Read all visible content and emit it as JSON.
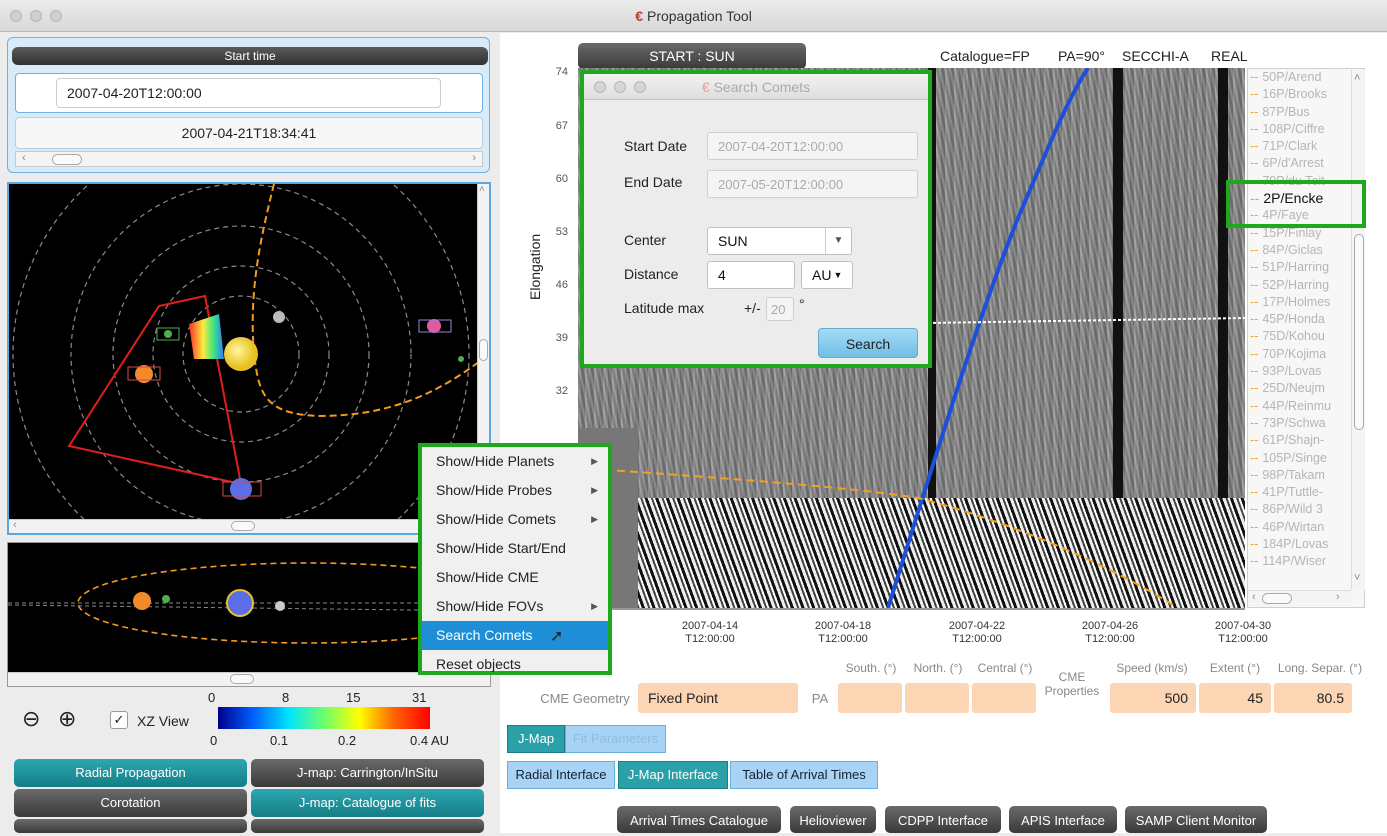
{
  "window": {
    "title": "Propagation Tool"
  },
  "left": {
    "start_time_label": "Start time",
    "start_time_value": "2007-04-20T12:00:00",
    "end_time_value": "2007-04-21T18:34:41",
    "xz_view_label": "XZ View",
    "colorbar": {
      "top_ticks": [
        "0",
        "8",
        "15",
        "31 hrs"
      ],
      "bottom_ticks": [
        "0",
        "0.1",
        "0.2",
        "0.4 AU"
      ]
    },
    "buttons": [
      "Radial Propagation",
      "J-map: Carrington/InSitu",
      "Corotation",
      "J-map: Catalogue of fits"
    ]
  },
  "context_menu": {
    "items": [
      {
        "label": "Show/Hide Planets",
        "submenu": true
      },
      {
        "label": "Show/Hide Probes",
        "submenu": true
      },
      {
        "label": "Show/Hide Comets",
        "submenu": true
      },
      {
        "label": "Show/Hide Start/End",
        "submenu": false
      },
      {
        "label": "Show/Hide CME",
        "submenu": false
      },
      {
        "label": "Show/Hide FOVs",
        "submenu": true
      },
      {
        "label": "Search Comets",
        "submenu": false
      },
      {
        "label": "Reset objects",
        "submenu": false
      }
    ],
    "highlighted_index": 6
  },
  "jmap": {
    "start_button": "START : SUN",
    "catalogue": "Catalogue=FP",
    "pa": "PA=90°",
    "instrument": "SECCHI-A",
    "mode": "REAL",
    "ylabel": "Elongation",
    "yticks": [
      "74",
      "67",
      "60",
      "53",
      "46",
      "39",
      "32"
    ],
    "xticks": [
      [
        "2007-04-14",
        "T12:00:00"
      ],
      [
        "2007-04-18",
        "T12:00:00"
      ],
      [
        "2007-04-22",
        "T12:00:00"
      ],
      [
        "2007-04-26",
        "T12:00:00"
      ],
      [
        "2007-04-30",
        "T12:00:00"
      ]
    ]
  },
  "search_dialog": {
    "title": "Search Comets",
    "start_date_label": "Start Date",
    "start_date_placeholder": "2007-04-20T12:00:00",
    "end_date_label": "End Date",
    "end_date_placeholder": "2007-05-20T12:00:00",
    "center_label": "Center",
    "center_value": "SUN",
    "distance_label": "Distance",
    "distance_value": "4",
    "distance_unit": "AU",
    "latitude_label": "Latitude max",
    "latitude_pm": "+/-",
    "latitude_value": "20",
    "latitude_unit": "°",
    "search_button": "Search"
  },
  "comets": {
    "items": [
      "50P/Arend",
      "16P/Brooks",
      "87P/Bus",
      "108P/Ciffre",
      "71P/Clark",
      "6P/d'Arrest",
      "79P/du Toit",
      "2P/Encke",
      "4P/Faye",
      "15P/Finlay",
      "84P/Giclas",
      "51P/Harring",
      "52P/Harring",
      "17P/Holmes",
      "45P/Honda",
      "75D/Kohou",
      "70P/Kojima",
      "93P/Lovas",
      "25D/Neujm",
      "44P/Reinmu",
      "73P/Schwa",
      "61P/Shajn-",
      "105P/Singe",
      "98P/Takam",
      "41P/Tuttle-",
      "86P/Wild 3",
      "46P/Wirtan",
      "184P/Lovas",
      "114P/Wiser"
    ],
    "selected_index": 7
  },
  "cme": {
    "geometry_label": "CME Geometry",
    "geometry_value": "Fixed Point",
    "pa_label": "PA",
    "south_label": "South. (°)",
    "north_label": "North. (°)",
    "central_label": "Central (°)",
    "properties_label": "CME Properties",
    "speed_label": "Speed (km/s)",
    "speed_value": "500",
    "extent_label": "Extent (°)",
    "extent_value": "45",
    "longsep_label": "Long. Separ. (°)",
    "longsep_value": "80.5"
  },
  "tabs_row1": [
    "J-Map",
    "Fit Parameters"
  ],
  "tabs_row2": [
    "Radial Interface",
    "J-Map Interface",
    "Table of Arrival Times"
  ],
  "bottom_buttons": [
    "Arrival Times Catalogue",
    "Helioviewer",
    "CDPP Interface",
    "APIS Interface",
    "SAMP Client Monitor"
  ],
  "colors": {
    "highlight_green": "#1da81d",
    "menu_highlight": "#1e8fd6",
    "teal": "#137e86"
  }
}
